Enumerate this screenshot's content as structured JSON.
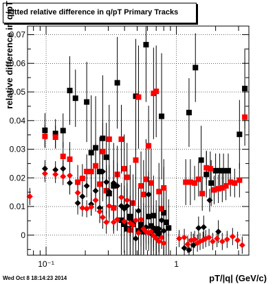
{
  "title": "Fitted relative difference in q/pT  Primary Tracks",
  "timestamp": "Wed Oct  8 18:14:23 2014",
  "chart_data": {
    "type": "scatter",
    "title": "Fitted relative difference in q/pT  Primary Tracks",
    "xlabel": "pT/|q| (GeV/c)",
    "ylabel": "relative difference in q/pT",
    "x_scale": "log",
    "xlim": [
      0.072,
      3.6
    ],
    "ylim": [
      -0.007,
      0.073
    ],
    "grid": true,
    "x_ticks": [
      {
        "value": 0.1,
        "label": "10⁻¹"
      },
      {
        "value": 1,
        "label": "1"
      }
    ],
    "y_ticks": [
      {
        "value": 0,
        "label": "0"
      },
      {
        "value": 0.01,
        "label": "0.01"
      },
      {
        "value": 0.02,
        "label": "0.02"
      },
      {
        "value": 0.03,
        "label": "0.03"
      },
      {
        "value": 0.04,
        "label": "0.04"
      },
      {
        "value": 0.05,
        "label": "0.05"
      },
      {
        "value": 0.06,
        "label": "0.06"
      },
      {
        "value": 0.07,
        "label": "0.07"
      }
    ],
    "series": [
      {
        "marker": "square",
        "color": "#000000",
        "points": [
          {
            "x": 0.098,
            "y": 0.0366,
            "err": 0.006
          },
          {
            "x": 0.118,
            "y": 0.0355,
            "err": 0.005
          },
          {
            "x": 0.135,
            "y": 0.0365,
            "err": 0.006
          },
          {
            "x": 0.152,
            "y": 0.0505,
            "err": 0.012
          },
          {
            "x": 0.168,
            "y": 0.0478,
            "err": 0.01
          },
          {
            "x": 0.205,
            "y": 0.0465,
            "err": 0.014
          },
          {
            "x": 0.222,
            "y": 0.0288,
            "err": 0.02
          },
          {
            "x": 0.24,
            "y": 0.0305,
            "err": 0.018
          },
          {
            "x": 0.258,
            "y": 0.0222,
            "err": 0.012
          },
          {
            "x": 0.272,
            "y": 0.0338,
            "err": 0.022
          },
          {
            "x": 0.29,
            "y": 0.0272,
            "err": 0.012
          },
          {
            "x": 0.305,
            "y": 0.0145,
            "err": 0.01
          },
          {
            "x": 0.33,
            "y": 0.0172,
            "err": 0.015
          },
          {
            "x": 0.352,
            "y": 0.0532,
            "err": 0.016
          },
          {
            "x": 0.378,
            "y": 0.0052,
            "err": 0.012
          },
          {
            "x": 0.398,
            "y": 0.0038,
            "err": 0.01
          },
          {
            "x": 0.418,
            "y": 0.0022,
            "err": 0.01
          },
          {
            "x": 0.442,
            "y": 0.0065,
            "err": 0.018
          },
          {
            "x": 0.465,
            "y": 0.0038,
            "err": 0.012
          },
          {
            "x": 0.488,
            "y": 0.0485,
            "err": 0.02
          },
          {
            "x": 0.512,
            "y": 0.0015,
            "err": 0.01
          },
          {
            "x": 0.535,
            "y": 0.0028,
            "err": 0.012
          },
          {
            "x": 0.56,
            "y": 0.0012,
            "err": 0.01
          },
          {
            "x": 0.585,
            "y": 0.0665,
            "err": 0.02
          },
          {
            "x": 0.612,
            "y": 0.0065,
            "err": 0.012
          },
          {
            "x": 0.64,
            "y": 0.0032,
            "err": 0.012
          },
          {
            "x": 0.668,
            "y": 0.0068,
            "err": 0.014
          },
          {
            "x": 0.7,
            "y": 0.0022,
            "err": 0.01
          },
          {
            "x": 0.735,
            "y": 0.0005,
            "err": 0.01
          },
          {
            "x": 0.77,
            "y": 0.0415,
            "err": 0.022
          },
          {
            "x": 0.8,
            "y": 0.0078,
            "err": 0.016
          },
          {
            "x": 0.835,
            "y": 0.0045,
            "err": 0.012
          },
          {
            "x": 0.872,
            "y": 0.0025,
            "err": 0.01
          },
          {
            "x": 1.25,
            "y": 0.0428,
            "err": 0.012
          },
          {
            "x": 1.4,
            "y": 0.0585,
            "err": 0.012
          },
          {
            "x": 1.55,
            "y": 0.0262,
            "err": 0.012
          },
          {
            "x": 1.7,
            "y": 0.0212,
            "err": 0.008
          },
          {
            "x": 1.85,
            "y": 0.0182,
            "err": 0.008
          },
          {
            "x": 2.0,
            "y": 0.0225,
            "err": 0.006
          },
          {
            "x": 2.15,
            "y": 0.0225,
            "err": 0.006
          },
          {
            "x": 2.3,
            "y": 0.0225,
            "err": 0.006
          },
          {
            "x": 2.5,
            "y": 0.0225,
            "err": 0.006
          },
          {
            "x": 3.05,
            "y": 0.0352,
            "err": 0.012
          },
          {
            "x": 3.35,
            "y": 0.0512,
            "err": 0.014
          }
        ]
      },
      {
        "marker": "square",
        "color": "#ff0000",
        "points": [
          {
            "x": 0.098,
            "y": 0.0345,
            "err": 0.004
          },
          {
            "x": 0.118,
            "y": 0.0342,
            "err": 0.004
          },
          {
            "x": 0.135,
            "y": 0.0275,
            "err": 0.005
          },
          {
            "x": 0.152,
            "y": 0.0265,
            "err": 0.006
          },
          {
            "x": 0.175,
            "y": 0.0185,
            "err": 0.006
          },
          {
            "x": 0.19,
            "y": 0.0198,
            "err": 0.005
          },
          {
            "x": 0.205,
            "y": 0.0222,
            "err": 0.006
          },
          {
            "x": 0.222,
            "y": 0.0222,
            "err": 0.006
          },
          {
            "x": 0.24,
            "y": 0.0242,
            "err": 0.008
          },
          {
            "x": 0.258,
            "y": 0.0178,
            "err": 0.008
          },
          {
            "x": 0.272,
            "y": 0.0292,
            "err": 0.01
          },
          {
            "x": 0.29,
            "y": 0.0155,
            "err": 0.008
          },
          {
            "x": 0.305,
            "y": 0.0335,
            "err": 0.012
          },
          {
            "x": 0.33,
            "y": 0.0095,
            "err": 0.008
          },
          {
            "x": 0.352,
            "y": 0.0212,
            "err": 0.01
          },
          {
            "x": 0.378,
            "y": 0.0335,
            "err": 0.012
          },
          {
            "x": 0.398,
            "y": 0.0232,
            "err": 0.012
          },
          {
            "x": 0.418,
            "y": 0.0202,
            "err": 0.012
          },
          {
            "x": 0.442,
            "y": 0.0018,
            "err": 0.012
          },
          {
            "x": 0.465,
            "y": 0.0112,
            "err": 0.01
          },
          {
            "x": 0.488,
            "y": 0.0262,
            "err": 0.014
          },
          {
            "x": 0.512,
            "y": 0.0482,
            "err": 0.018
          },
          {
            "x": 0.535,
            "y": 0.0172,
            "err": 0.012
          },
          {
            "x": 0.56,
            "y": 0.0142,
            "err": 0.012
          },
          {
            "x": 0.585,
            "y": 0.0195,
            "err": 0.014
          },
          {
            "x": 0.612,
            "y": 0.0312,
            "err": 0.014
          },
          {
            "x": 0.64,
            "y": 0.0182,
            "err": 0.012
          },
          {
            "x": 0.668,
            "y": 0.0495,
            "err": 0.016
          },
          {
            "x": 0.7,
            "y": 0.0502,
            "err": 0.016
          },
          {
            "x": 0.735,
            "y": 0.0152,
            "err": 0.01
          },
          {
            "x": 0.77,
            "y": 0.0092,
            "err": 0.008
          },
          {
            "x": 0.8,
            "y": 0.0165,
            "err": 0.01
          },
          {
            "x": 1.18,
            "y": 0.0185,
            "err": 0.008
          },
          {
            "x": 1.28,
            "y": 0.0185,
            "err": 0.008
          },
          {
            "x": 1.38,
            "y": 0.0182,
            "err": 0.006
          },
          {
            "x": 1.48,
            "y": 0.0195,
            "err": 0.006
          },
          {
            "x": 1.58,
            "y": 0.0145,
            "err": 0.006
          },
          {
            "x": 1.7,
            "y": 0.0235,
            "err": 0.006
          },
          {
            "x": 1.82,
            "y": 0.0232,
            "err": 0.006
          },
          {
            "x": 1.95,
            "y": 0.0158,
            "err": 0.005
          },
          {
            "x": 2.1,
            "y": 0.0162,
            "err": 0.005
          },
          {
            "x": 2.25,
            "y": 0.0165,
            "err": 0.005
          },
          {
            "x": 2.4,
            "y": 0.0172,
            "err": 0.005
          },
          {
            "x": 2.6,
            "y": 0.0185,
            "err": 0.005
          },
          {
            "x": 2.8,
            "y": 0.0182,
            "err": 0.005
          },
          {
            "x": 3.05,
            "y": 0.0192,
            "err": 0.006
          },
          {
            "x": 3.35,
            "y": 0.0412,
            "err": 0.01
          }
        ]
      },
      {
        "marker": "diamond",
        "color": "#000000",
        "points": [
          {
            "x": 0.098,
            "y": 0.0232,
            "err": 0.003
          },
          {
            "x": 0.118,
            "y": 0.0228,
            "err": 0.003
          },
          {
            "x": 0.135,
            "y": 0.0232,
            "err": 0.003
          },
          {
            "x": 0.152,
            "y": 0.0182,
            "err": 0.004
          },
          {
            "x": 0.175,
            "y": 0.0112,
            "err": 0.004
          },
          {
            "x": 0.19,
            "y": 0.0135,
            "err": 0.004
          },
          {
            "x": 0.205,
            "y": 0.0172,
            "err": 0.004
          },
          {
            "x": 0.222,
            "y": 0.0108,
            "err": 0.004
          },
          {
            "x": 0.24,
            "y": 0.0155,
            "err": 0.005
          },
          {
            "x": 0.258,
            "y": 0.0095,
            "err": 0.005
          },
          {
            "x": 0.272,
            "y": 0.0222,
            "err": 0.006
          },
          {
            "x": 0.29,
            "y": 0.0185,
            "err": 0.006
          },
          {
            "x": 0.305,
            "y": 0.0152,
            "err": 0.006
          },
          {
            "x": 0.33,
            "y": 0.0182,
            "err": 0.008
          },
          {
            "x": 0.352,
            "y": 0.0172,
            "err": 0.008
          },
          {
            "x": 0.378,
            "y": 0.0102,
            "err": 0.008
          },
          {
            "x": 0.398,
            "y": 0.0092,
            "err": 0.008
          },
          {
            "x": 0.418,
            "y": 0.0102,
            "err": 0.008
          },
          {
            "x": 0.442,
            "y": 0.0055,
            "err": 0.008
          },
          {
            "x": 0.465,
            "y": 0.0045,
            "err": 0.008
          },
          {
            "x": 0.488,
            "y": -0.0012,
            "err": 0.008
          },
          {
            "x": 0.512,
            "y": 0.0085,
            "err": 0.008
          },
          {
            "x": 0.535,
            "y": 0.0042,
            "err": 0.008
          },
          {
            "x": 0.56,
            "y": 0.0015,
            "err": 0.008
          },
          {
            "x": 0.585,
            "y": 0.0028,
            "err": 0.008
          },
          {
            "x": 0.612,
            "y": 0.0142,
            "err": 0.008
          },
          {
            "x": 0.64,
            "y": 0.0005,
            "err": 0.008
          },
          {
            "x": 0.668,
            "y": 0.0025,
            "err": 0.008
          },
          {
            "x": 0.7,
            "y": 0.0012,
            "err": 0.008
          },
          {
            "x": 0.735,
            "y": 0.0022,
            "err": 0.008
          },
          {
            "x": 0.77,
            "y": 0.0052,
            "err": 0.008
          },
          {
            "x": 0.8,
            "y": 0.0015,
            "err": 0.008
          },
          {
            "x": 1.15,
            "y": -0.0045,
            "err": 0.004
          },
          {
            "x": 1.25,
            "y": -0.0052,
            "err": 0.004
          },
          {
            "x": 1.35,
            "y": -0.0035,
            "err": 0.004
          },
          {
            "x": 1.48,
            "y": 0.0025,
            "err": 0.004
          },
          {
            "x": 1.62,
            "y": 0.0028,
            "err": 0.004
          },
          {
            "x": 1.8,
            "y": 0.0122,
            "err": 0.004
          },
          {
            "x": 2.1,
            "y": 0.0012,
            "err": 0.004
          }
        ]
      },
      {
        "marker": "diamond",
        "color": "#ff0000",
        "points": [
          {
            "x": 0.075,
            "y": 0.0135,
            "err": 0.003
          },
          {
            "x": 0.098,
            "y": 0.0215,
            "err": 0.003
          },
          {
            "x": 0.118,
            "y": 0.0212,
            "err": 0.003
          },
          {
            "x": 0.135,
            "y": 0.0205,
            "err": 0.003
          },
          {
            "x": 0.152,
            "y": 0.0208,
            "err": 0.003
          },
          {
            "x": 0.175,
            "y": 0.0148,
            "err": 0.003
          },
          {
            "x": 0.19,
            "y": 0.0095,
            "err": 0.003
          },
          {
            "x": 0.205,
            "y": 0.0092,
            "err": 0.003
          },
          {
            "x": 0.222,
            "y": 0.0098,
            "err": 0.003
          },
          {
            "x": 0.24,
            "y": 0.0122,
            "err": 0.004
          },
          {
            "x": 0.258,
            "y": 0.0082,
            "err": 0.004
          },
          {
            "x": 0.272,
            "y": 0.0062,
            "err": 0.004
          },
          {
            "x": 0.29,
            "y": 0.0045,
            "err": 0.004
          },
          {
            "x": 0.305,
            "y": 0.0102,
            "err": 0.004
          },
          {
            "x": 0.33,
            "y": 0.0045,
            "err": 0.004
          },
          {
            "x": 0.352,
            "y": 0.0055,
            "err": 0.004
          },
          {
            "x": 0.378,
            "y": 0.0132,
            "err": 0.004
          },
          {
            "x": 0.398,
            "y": 0.0048,
            "err": 0.004
          },
          {
            "x": 0.418,
            "y": 0.0122,
            "err": 0.004
          },
          {
            "x": 0.442,
            "y": 0.0042,
            "err": 0.004
          },
          {
            "x": 0.465,
            "y": 0.0035,
            "err": 0.004
          },
          {
            "x": 0.488,
            "y": 0.0052,
            "err": 0.004
          },
          {
            "x": 0.512,
            "y": 0.0008,
            "err": 0.004
          },
          {
            "x": 0.535,
            "y": 0.0055,
            "err": 0.004
          },
          {
            "x": 0.56,
            "y": 0.0022,
            "err": 0.004
          },
          {
            "x": 0.585,
            "y": 0.0012,
            "err": 0.004
          },
          {
            "x": 0.612,
            "y": 0.0008,
            "err": 0.004
          },
          {
            "x": 0.64,
            "y": 0.0012,
            "err": 0.004
          },
          {
            "x": 0.668,
            "y": -0.0002,
            "err": 0.004
          },
          {
            "x": 0.7,
            "y": -0.0012,
            "err": 0.004
          },
          {
            "x": 0.735,
            "y": -0.0022,
            "err": 0.004
          },
          {
            "x": 0.77,
            "y": -0.0008,
            "err": 0.004
          },
          {
            "x": 0.8,
            "y": -0.0028,
            "err": 0.004
          },
          {
            "x": 1.05,
            "y": -0.0012,
            "err": 0.003
          },
          {
            "x": 1.15,
            "y": -0.0008,
            "err": 0.003
          },
          {
            "x": 1.22,
            "y": -0.0032,
            "err": 0.003
          },
          {
            "x": 1.3,
            "y": -0.0018,
            "err": 0.003
          },
          {
            "x": 1.38,
            "y": -0.0015,
            "err": 0.003
          },
          {
            "x": 1.45,
            "y": -0.0028,
            "err": 0.003
          },
          {
            "x": 1.52,
            "y": -0.0022,
            "err": 0.003
          },
          {
            "x": 1.6,
            "y": -0.0018,
            "err": 0.003
          },
          {
            "x": 1.68,
            "y": -0.0012,
            "err": 0.003
          },
          {
            "x": 1.78,
            "y": -0.0008,
            "err": 0.003
          },
          {
            "x": 1.9,
            "y": -0.0022,
            "err": 0.003
          },
          {
            "x": 2.05,
            "y": -0.0012,
            "err": 0.003
          },
          {
            "x": 2.25,
            "y": -0.0022,
            "err": 0.003
          },
          {
            "x": 2.45,
            "y": -0.0015,
            "err": 0.003
          },
          {
            "x": 2.7,
            "y": -0.0005,
            "err": 0.003
          },
          {
            "x": 2.95,
            "y": -0.0018,
            "err": 0.003
          },
          {
            "x": 3.2,
            "y": -0.0035,
            "err": 0.003
          }
        ]
      }
    ]
  }
}
